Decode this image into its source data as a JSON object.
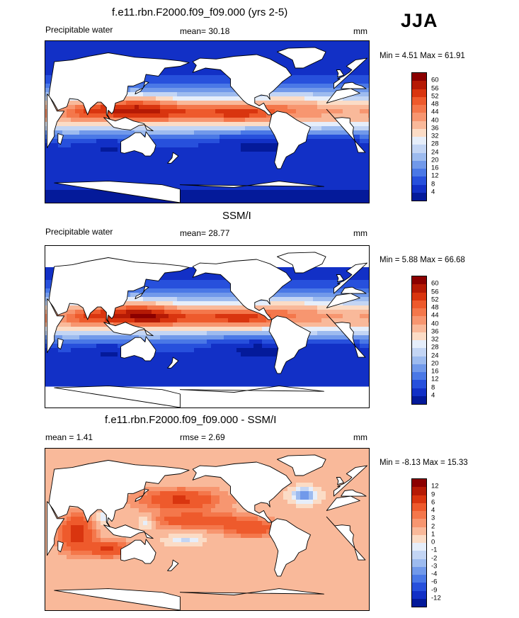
{
  "season": "JJA",
  "palette_abs": [
    "#8b0000",
    "#b51a05",
    "#d9350f",
    "#ee5a2c",
    "#f4774b",
    "#f79670",
    "#f9b99a",
    "#fbdcc6",
    "#e6eefa",
    "#c3d5f4",
    "#9dbbef",
    "#7199ea",
    "#4a78e6",
    "#2750dc",
    "#1230c6",
    "#041a9a"
  ],
  "palette_diff": [
    "#8b0000",
    "#b51a05",
    "#d9350f",
    "#ee5a2c",
    "#f4774b",
    "#f79670",
    "#f9b99a",
    "#fbdcc6",
    "#e6eefa",
    "#c3d5f4",
    "#9dbbef",
    "#7199ea",
    "#4a78e6",
    "#2750dc",
    "#1230c6",
    "#041a9a"
  ],
  "panels": [
    {
      "title": "f.e11.rbn.F2000.f09_f09.000 (yrs 2-5)",
      "left_label": "Precipitable water",
      "center_label": "mean=  30.18",
      "units": "mm",
      "minmax": "Min =   4.51 Max =  61.91",
      "colorbar_labels": [
        "60",
        "56",
        "52",
        "48",
        "44",
        "40",
        "36",
        "32",
        "28",
        "24",
        "20",
        "16",
        "12",
        "8",
        "4"
      ],
      "map_name": "model-precipitable-water-map"
    },
    {
      "title": "SSM/I",
      "left_label": "Precipitable water",
      "center_label": "mean=  28.77",
      "units": "mm",
      "minmax": "Min =   5.88 Max =  66.68",
      "colorbar_labels": [
        "60",
        "56",
        "52",
        "48",
        "44",
        "40",
        "36",
        "32",
        "28",
        "24",
        "20",
        "16",
        "12",
        "8",
        "4"
      ],
      "map_name": "ssmi-precipitable-water-map"
    },
    {
      "title": "f.e11.rbn.F2000.f09_f09.000 - SSM/I",
      "left_label": "mean =   1.41",
      "center_label": "rmse =   2.69",
      "units": "mm",
      "minmax": "Min =  -8.13 Max =  15.33",
      "colorbar_labels": [
        "12",
        "9",
        "6",
        "4",
        "3",
        "2",
        "1",
        "0",
        "-1",
        "-2",
        "-3",
        "-4",
        "-6",
        "-9",
        "-12"
      ],
      "map_name": "difference-map"
    }
  ]
}
